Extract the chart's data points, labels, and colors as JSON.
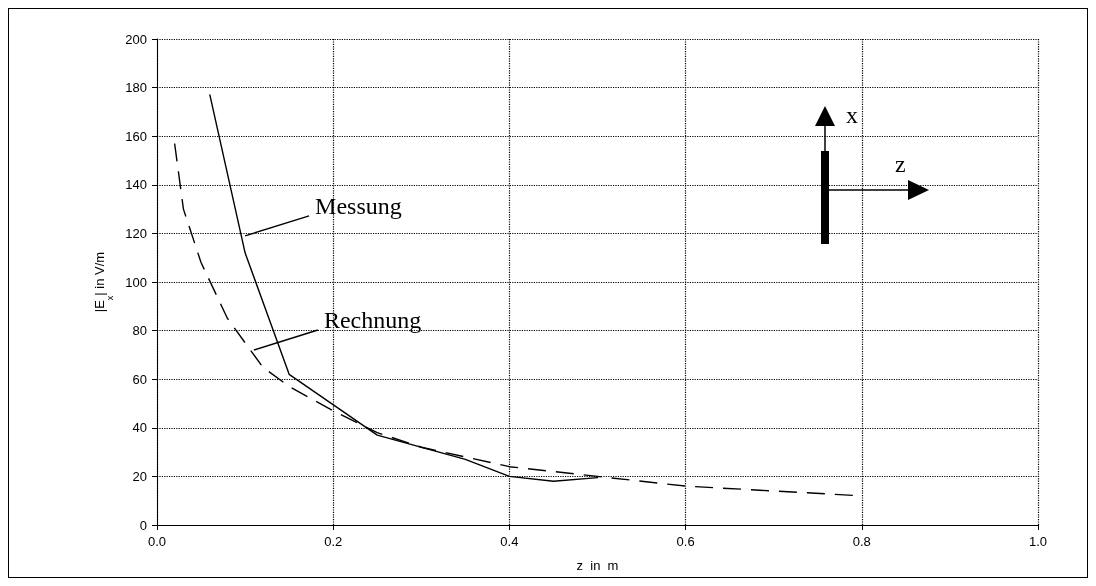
{
  "chart_data": {
    "type": "line",
    "xlabel": "z  in  m",
    "ylabel": "|E$_{x}$| in V/m",
    "xlim": [
      0,
      1
    ],
    "xticks": [
      {
        "value": 0,
        "label": "0.0"
      },
      0.2,
      0.4,
      0.6,
      0.8,
      {
        "value": 1,
        "label": "1.0"
      }
    ],
    "ylim": [
      0,
      200
    ],
    "yticks": [
      0,
      20,
      40,
      60,
      80,
      100,
      120,
      140,
      160,
      180,
      200
    ],
    "grid": true,
    "marker": "none",
    "series": [
      {
        "color": "#000000",
        "line_style": "solid",
        "x": [
          0.06,
          0.1,
          0.15,
          0.25,
          0.35,
          0.4,
          0.45,
          0.5
        ],
        "values": [
          177,
          112,
          62,
          37,
          27,
          20,
          18,
          19.5
        ]
      },
      {
        "color": "#000000",
        "line_style": "dashed",
        "x": [
          0.02,
          0.03,
          0.05,
          0.08,
          0.1,
          0.12,
          0.15,
          0.2,
          0.25,
          0.3,
          0.35,
          0.4,
          0.45,
          0.5,
          0.6,
          0.7,
          0.8
        ],
        "values": [
          157,
          130,
          108,
          85,
          75,
          65,
          57,
          47,
          38,
          32,
          28,
          24,
          22,
          20,
          16,
          14,
          12
        ]
      }
    ],
    "annotations": [
      {
        "text": "Messung",
        "x": 0.1,
        "y": 119
      },
      {
        "text": "Rechnung",
        "x": 0.11,
        "y": 72
      },
      "x",
      "z"
    ]
  }
}
